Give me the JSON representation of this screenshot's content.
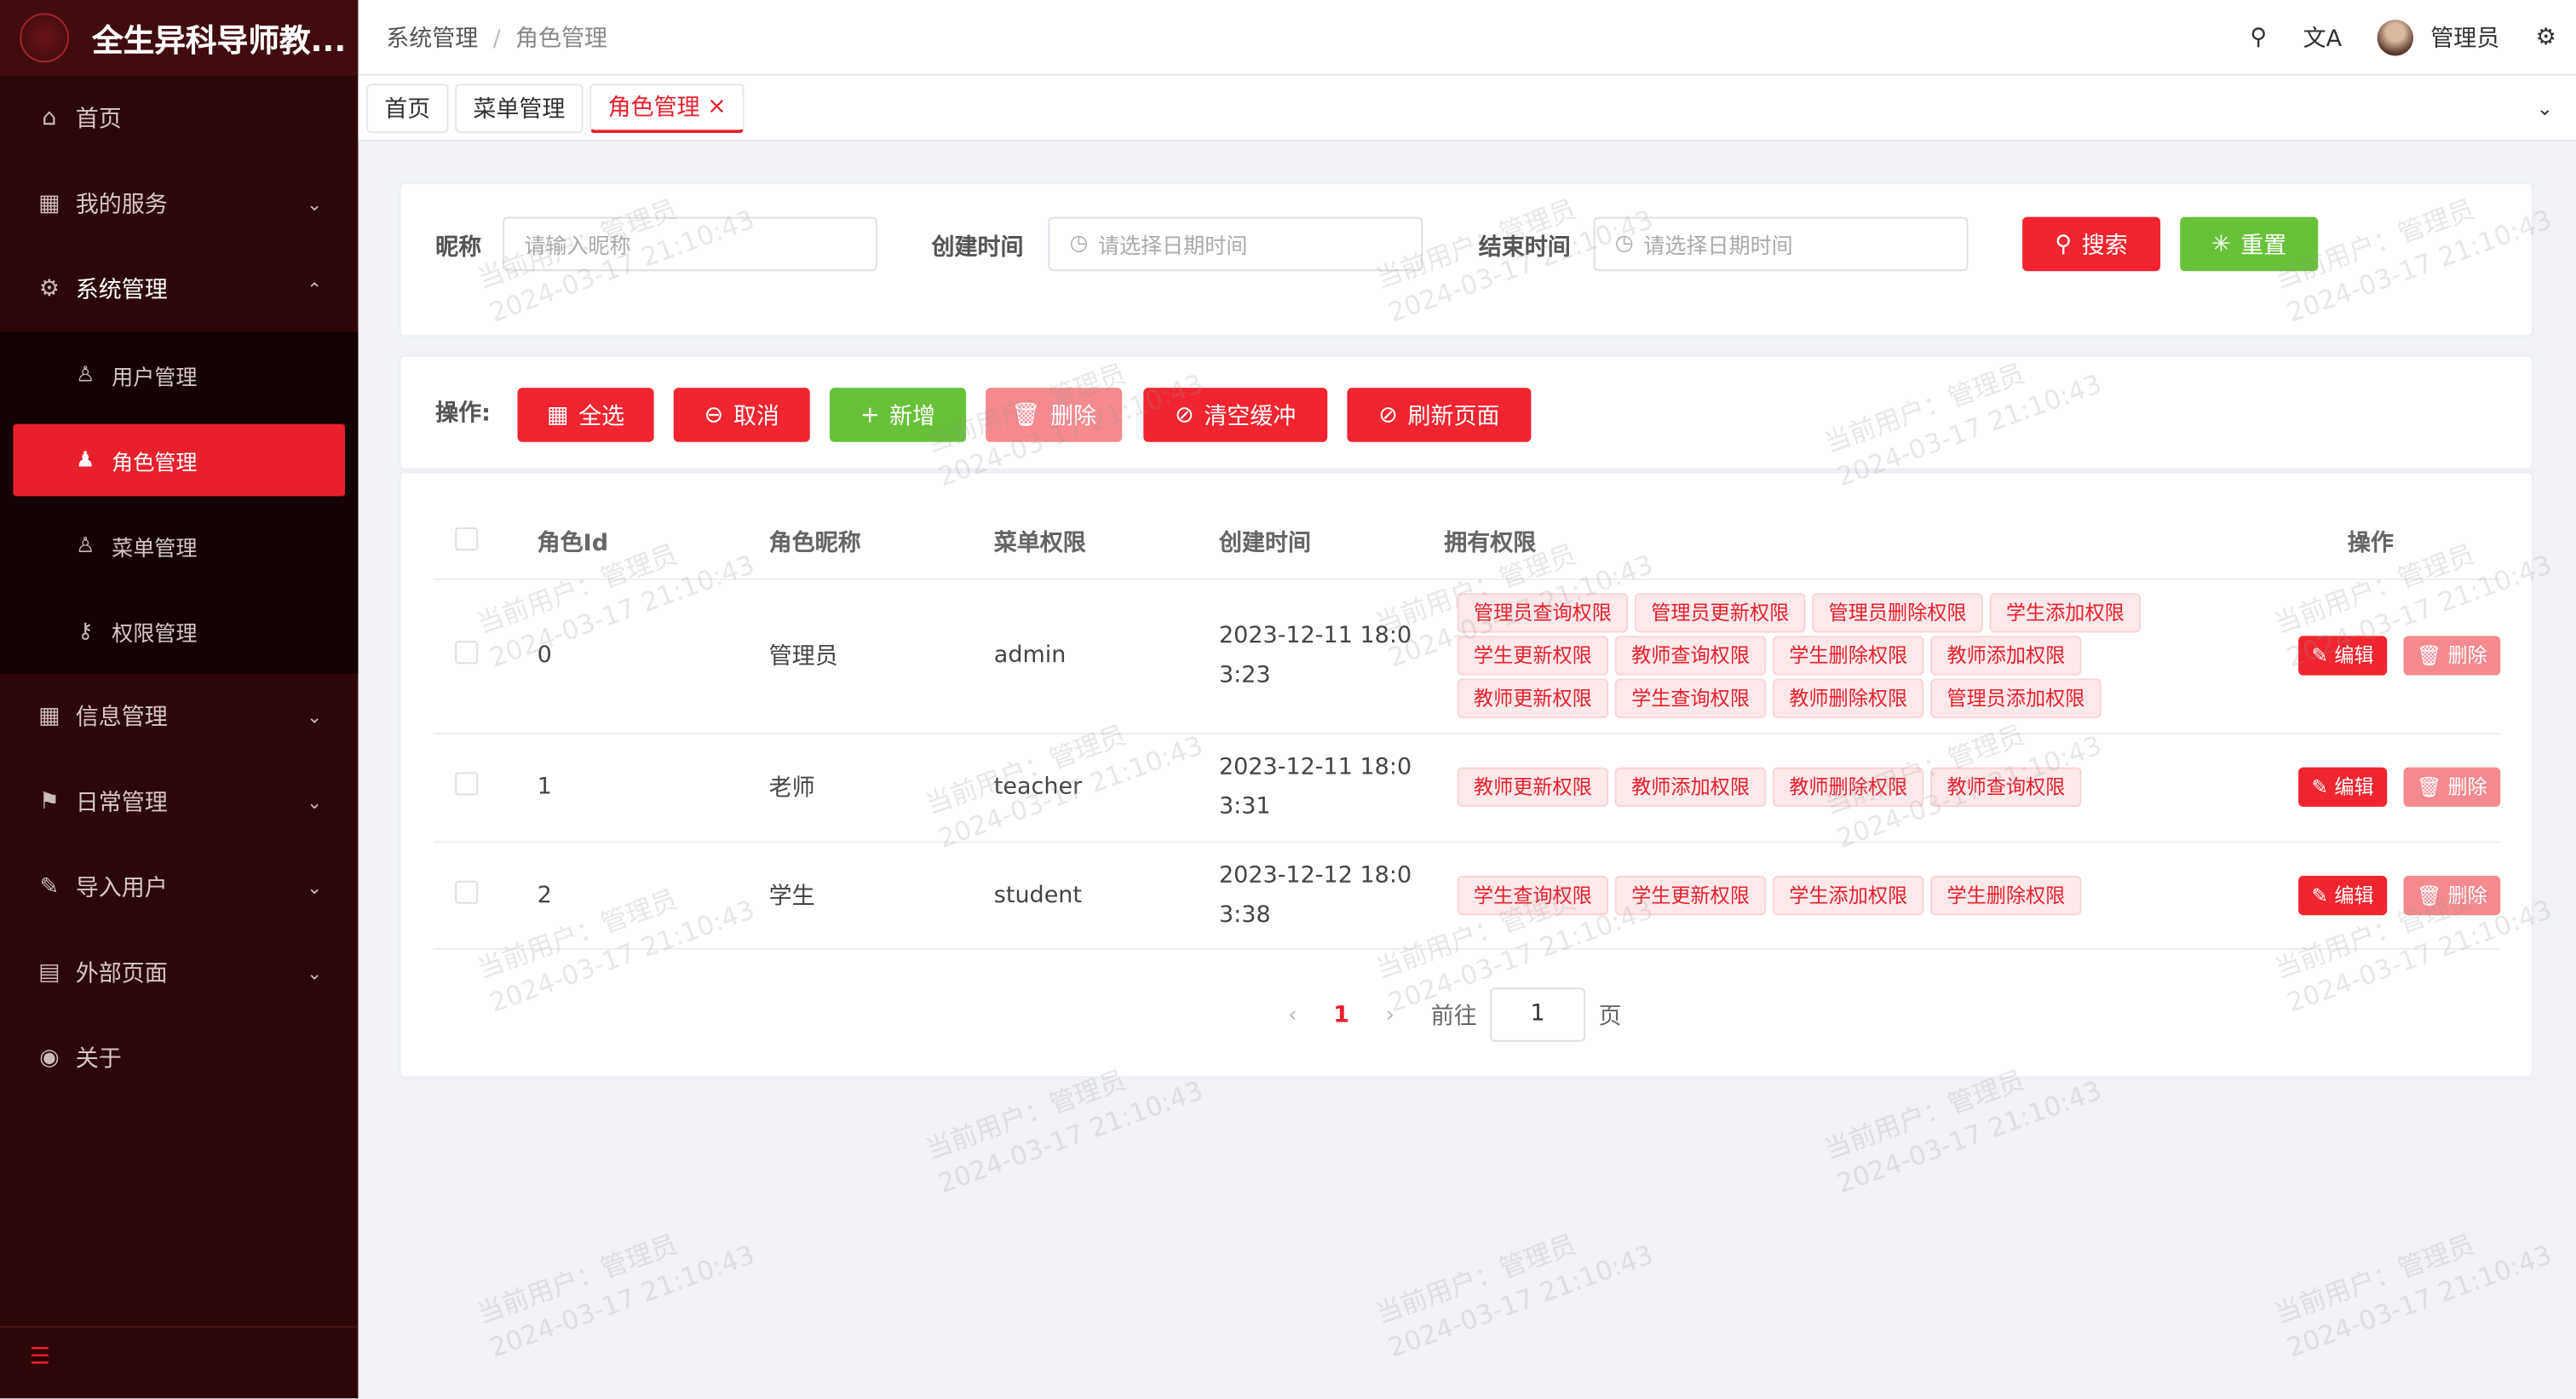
{
  "app": {
    "title": "全生异科导师教..."
  },
  "sidebar": {
    "items": [
      {
        "label": "首页",
        "icon": "home-icon"
      },
      {
        "label": "我的服务",
        "icon": "grid-icon"
      },
      {
        "label": "系统管理",
        "icon": "gear-icon",
        "children": [
          {
            "label": "用户管理"
          },
          {
            "label": "角色管理",
            "active": true
          },
          {
            "label": "菜单管理"
          },
          {
            "label": "权限管理"
          }
        ]
      },
      {
        "label": "信息管理",
        "icon": "grid-icon"
      },
      {
        "label": "日常管理",
        "icon": "flag-icon"
      },
      {
        "label": "导入用户",
        "icon": "edit-icon"
      },
      {
        "label": "外部页面",
        "icon": "window-icon"
      },
      {
        "label": "关于",
        "icon": "info-icon"
      }
    ]
  },
  "header": {
    "breadcrumb": [
      "系统管理",
      "角色管理"
    ],
    "user": "管理员"
  },
  "tabs": [
    {
      "label": "首页"
    },
    {
      "label": "菜单管理"
    },
    {
      "label": "角色管理",
      "active": true,
      "close": "×"
    }
  ],
  "search": {
    "nickname_label": "昵称",
    "nickname_placeholder": "请输入昵称",
    "created_label": "创建时间",
    "created_placeholder": "请选择日期时间",
    "end_label": "结束时间",
    "end_placeholder": "请选择日期时间",
    "search_btn": "搜索",
    "reset_btn": "重置"
  },
  "actions": {
    "label": "操作:",
    "select_all": "全选",
    "cancel": "取消",
    "add": "新增",
    "delete": "删除",
    "clear_cache": "清空缓冲",
    "refresh": "刷新页面"
  },
  "table": {
    "headers": [
      "角色Id",
      "角色昵称",
      "菜单权限",
      "创建时间",
      "拥有权限",
      "操作"
    ],
    "rows": [
      {
        "id": "0",
        "name": "管理员",
        "menu": "admin",
        "created": "2023-12-11 18:0",
        "created2": "3:23",
        "perms": [
          "管理员查询权限",
          "管理员更新权限",
          "管理员删除权限",
          "学生添加权限",
          "学生更新权限",
          "教师查询权限",
          "学生删除权限",
          "教师添加权限",
          "教师更新权限",
          "学生查询权限",
          "教师删除权限",
          "管理员添加权限"
        ]
      },
      {
        "id": "1",
        "name": "老师",
        "menu": "teacher",
        "created": "2023-12-11 18:0",
        "created2": "3:31",
        "perms": [
          "教师更新权限",
          "教师添加权限",
          "教师删除权限",
          "教师查询权限"
        ]
      },
      {
        "id": "2",
        "name": "学生",
        "menu": "student",
        "created": "2023-12-12 18:0",
        "created2": "3:38",
        "perms": [
          "学生查询权限",
          "学生更新权限",
          "学生添加权限",
          "学生删除权限"
        ]
      }
    ],
    "edit": "编辑",
    "delete": "删除"
  },
  "pagination": {
    "current": "1",
    "goto": "前往",
    "page_input": "1",
    "page_unit": "页"
  },
  "watermark": {
    "line1": "当前用户：管理员",
    "line2": "2024-03-17 21:10:43"
  },
  "colors": {
    "primary": "#f0252f",
    "success": "#67c23a",
    "sidebar": "#2c0609"
  }
}
